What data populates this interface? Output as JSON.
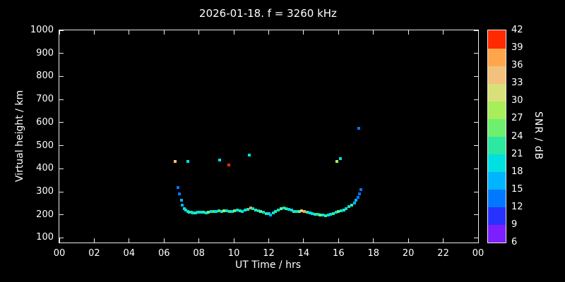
{
  "background_color": "#000000",
  "chart_data": {
    "type": "scatter",
    "title": "2026-01-18. f = 3260 kHz",
    "xlabel": "UT Time / hrs",
    "ylabel": "Virtual height / km",
    "colorbar_label": "SNR / dB",
    "xlim": [
      0,
      24
    ],
    "ylim": [
      80,
      1000
    ],
    "x_tick_values": [
      0,
      2,
      4,
      6,
      8,
      10,
      12,
      14,
      16,
      18,
      20,
      22,
      24
    ],
    "x_tick_labels": [
      "00",
      "02",
      "04",
      "06",
      "08",
      "10",
      "12",
      "14",
      "16",
      "18",
      "20",
      "22",
      "00"
    ],
    "y_tick_values": [
      100,
      200,
      300,
      400,
      500,
      600,
      700,
      800,
      900,
      1000
    ],
    "y_tick_labels": [
      "100",
      "200",
      "300",
      "400",
      "500",
      "600",
      "700",
      "800",
      "900",
      "1000"
    ],
    "grid": false,
    "legend_position": "none",
    "colorbar": {
      "min": 6,
      "max": 42,
      "tick_values": [
        6,
        9,
        12,
        15,
        18,
        21,
        24,
        27,
        30,
        33,
        36,
        39,
        42
      ],
      "band_colors_bottom_to_top": [
        "#7d1eff",
        "#2832ff",
        "#0078ff",
        "#00b4ff",
        "#00e0e0",
        "#2ce8a0",
        "#6ef06e",
        "#a8ee5a",
        "#d9e07a",
        "#f2c27d",
        "#ffa64d",
        "#ff2a00"
      ]
    },
    "points_format": "[ut_hours, virtual_height_km, snr_db]",
    "points": [
      [
        6.65,
        430,
        33
      ],
      [
        7.35,
        432,
        18
      ],
      [
        9.2,
        438,
        18
      ],
      [
        9.7,
        415,
        39
      ],
      [
        10.9,
        460,
        18
      ],
      [
        15.9,
        433,
        27
      ],
      [
        16.1,
        445,
        18
      ],
      [
        17.15,
        575,
        12
      ],
      [
        6.8,
        318,
        12
      ],
      [
        6.9,
        292,
        12
      ],
      [
        7.0,
        262,
        15
      ],
      [
        7.05,
        243,
        15
      ],
      [
        7.15,
        228,
        18
      ],
      [
        7.25,
        220,
        18
      ],
      [
        7.35,
        215,
        18
      ],
      [
        7.45,
        212,
        21
      ],
      [
        7.55,
        210,
        18
      ],
      [
        7.65,
        208,
        18
      ],
      [
        7.8,
        207,
        21
      ],
      [
        7.95,
        210,
        18
      ],
      [
        8.1,
        212,
        18
      ],
      [
        8.25,
        210,
        21
      ],
      [
        8.4,
        208,
        18
      ],
      [
        8.55,
        212,
        24
      ],
      [
        8.7,
        215,
        18
      ],
      [
        8.85,
        213,
        21
      ],
      [
        9.0,
        216,
        18
      ],
      [
        9.15,
        218,
        21
      ],
      [
        9.3,
        215,
        18
      ],
      [
        9.45,
        217,
        27
      ],
      [
        9.6,
        219,
        18
      ],
      [
        9.75,
        216,
        21
      ],
      [
        9.9,
        214,
        18
      ],
      [
        10.05,
        218,
        24
      ],
      [
        10.2,
        220,
        18
      ],
      [
        10.35,
        217,
        21
      ],
      [
        10.5,
        215,
        18
      ],
      [
        10.65,
        222,
        18
      ],
      [
        10.8,
        225,
        21
      ],
      [
        10.95,
        230,
        36
      ],
      [
        11.1,
        226,
        18
      ],
      [
        11.25,
        222,
        21
      ],
      [
        11.4,
        218,
        18
      ],
      [
        11.55,
        214,
        24
      ],
      [
        11.7,
        210,
        18
      ],
      [
        11.85,
        206,
        21
      ],
      [
        12.0,
        204,
        18
      ],
      [
        12.1,
        200,
        15
      ],
      [
        12.25,
        208,
        18
      ],
      [
        12.4,
        215,
        21
      ],
      [
        12.55,
        222,
        18
      ],
      [
        12.7,
        228,
        24
      ],
      [
        12.85,
        230,
        18
      ],
      [
        13.0,
        228,
        21
      ],
      [
        13.15,
        224,
        18
      ],
      [
        13.3,
        220,
        18
      ],
      [
        13.45,
        216,
        21
      ],
      [
        13.6,
        213,
        18
      ],
      [
        13.75,
        215,
        24
      ],
      [
        13.9,
        218,
        33
      ],
      [
        14.05,
        214,
        36
      ],
      [
        14.2,
        210,
        21
      ],
      [
        14.35,
        207,
        18
      ],
      [
        14.5,
        205,
        18
      ],
      [
        14.65,
        203,
        21
      ],
      [
        14.8,
        201,
        18
      ],
      [
        14.95,
        200,
        24
      ],
      [
        15.1,
        198,
        18
      ],
      [
        15.25,
        197,
        21
      ],
      [
        15.4,
        199,
        18
      ],
      [
        15.55,
        202,
        18
      ],
      [
        15.7,
        206,
        21
      ],
      [
        15.85,
        210,
        18
      ],
      [
        16.0,
        214,
        24
      ],
      [
        16.15,
        218,
        18
      ],
      [
        16.3,
        222,
        21
      ],
      [
        16.45,
        228,
        18
      ],
      [
        16.6,
        235,
        18
      ],
      [
        16.75,
        242,
        21
      ],
      [
        16.9,
        252,
        15
      ],
      [
        17.0,
        262,
        15
      ],
      [
        17.1,
        275,
        12
      ],
      [
        17.2,
        290,
        12
      ],
      [
        17.3,
        308,
        12
      ]
    ]
  }
}
